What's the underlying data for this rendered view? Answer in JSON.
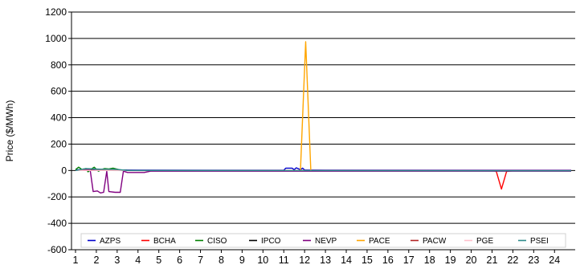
{
  "chart_data": {
    "type": "line",
    "title": "",
    "xlabel": "",
    "ylabel": "Price ($/MWh)",
    "ylim": [
      -600,
      1200
    ],
    "yticks": [
      -600,
      -400,
      -200,
      0,
      200,
      400,
      600,
      800,
      1000,
      1200
    ],
    "xlim": [
      1,
      24.8
    ],
    "xticks": [
      1,
      2,
      3,
      4,
      5,
      6,
      7,
      8,
      9,
      10,
      11,
      12,
      13,
      14,
      15,
      16,
      17,
      18,
      19,
      20,
      21,
      22,
      23,
      24
    ],
    "grid": "horizontal",
    "legend_position": "bottom-inside",
    "series": [
      {
        "name": "AZPS",
        "color": "#0000cc",
        "points": [
          [
            1,
            5
          ],
          [
            4,
            3
          ],
          [
            11,
            2
          ],
          [
            11.1,
            18
          ],
          [
            11.4,
            18
          ],
          [
            11.5,
            6
          ],
          [
            11.6,
            20
          ],
          [
            11.8,
            6
          ],
          [
            11.9,
            18
          ],
          [
            12.0,
            4
          ],
          [
            13,
            3
          ],
          [
            14.5,
            3
          ],
          [
            24.8,
            3
          ]
        ]
      },
      {
        "name": "BCHA",
        "color": "#ff0000",
        "points": [
          [
            1,
            0
          ],
          [
            21,
            -2
          ],
          [
            21.2,
            -5
          ],
          [
            21.45,
            -140
          ],
          [
            21.7,
            -8
          ],
          [
            22,
            -2
          ],
          [
            24.8,
            -2
          ]
        ]
      },
      {
        "name": "CISO",
        "color": "#008000",
        "points": [
          [
            1,
            6
          ],
          [
            1.15,
            25
          ],
          [
            1.3,
            8
          ],
          [
            1.5,
            15
          ],
          [
            1.6,
            -10
          ],
          [
            1.75,
            10
          ],
          [
            1.9,
            25
          ],
          [
            2.1,
            -5
          ],
          [
            2.3,
            10
          ],
          [
            2.4,
            15
          ],
          [
            2.6,
            12
          ],
          [
            2.8,
            18
          ],
          [
            3,
            10
          ],
          [
            3.2,
            2
          ],
          [
            4,
            0
          ],
          [
            24.8,
            0
          ]
        ]
      },
      {
        "name": "IPCO",
        "color": "#000000",
        "points": [
          [
            1,
            0
          ],
          [
            1.7,
            5
          ],
          [
            2,
            0
          ],
          [
            2.5,
            5
          ],
          [
            3,
            0
          ],
          [
            24.8,
            -3
          ]
        ]
      },
      {
        "name": "NEVP",
        "color": "#800080",
        "points": [
          [
            1,
            0
          ],
          [
            1.5,
            5
          ],
          [
            1.7,
            10
          ],
          [
            1.85,
            -160
          ],
          [
            2.05,
            -155
          ],
          [
            2.2,
            -170
          ],
          [
            2.35,
            -165
          ],
          [
            2.5,
            -5
          ],
          [
            2.6,
            -160
          ],
          [
            2.9,
            -165
          ],
          [
            3.15,
            -165
          ],
          [
            3.3,
            -5
          ],
          [
            3.5,
            -15
          ],
          [
            4.3,
            -15
          ],
          [
            4.6,
            -5
          ],
          [
            24.8,
            -5
          ]
        ]
      },
      {
        "name": "PACE",
        "color": "#ffa500",
        "points": [
          [
            1,
            0
          ],
          [
            11.8,
            0
          ],
          [
            12.05,
            975
          ],
          [
            12.3,
            0
          ],
          [
            24.8,
            0
          ]
        ]
      },
      {
        "name": "PACW",
        "color": "#b22222",
        "points": [
          [
            1,
            0
          ],
          [
            24.8,
            0
          ]
        ]
      },
      {
        "name": "PGE",
        "color": "#ffc0cb",
        "points": [
          [
            1,
            0
          ],
          [
            24.8,
            0
          ]
        ]
      },
      {
        "name": "PSEI",
        "color": "#2e8b8b",
        "points": [
          [
            1,
            0
          ],
          [
            1.5,
            15
          ],
          [
            2.2,
            10
          ],
          [
            3,
            8
          ],
          [
            3.5,
            0
          ],
          [
            24.8,
            -2
          ]
        ]
      }
    ]
  }
}
